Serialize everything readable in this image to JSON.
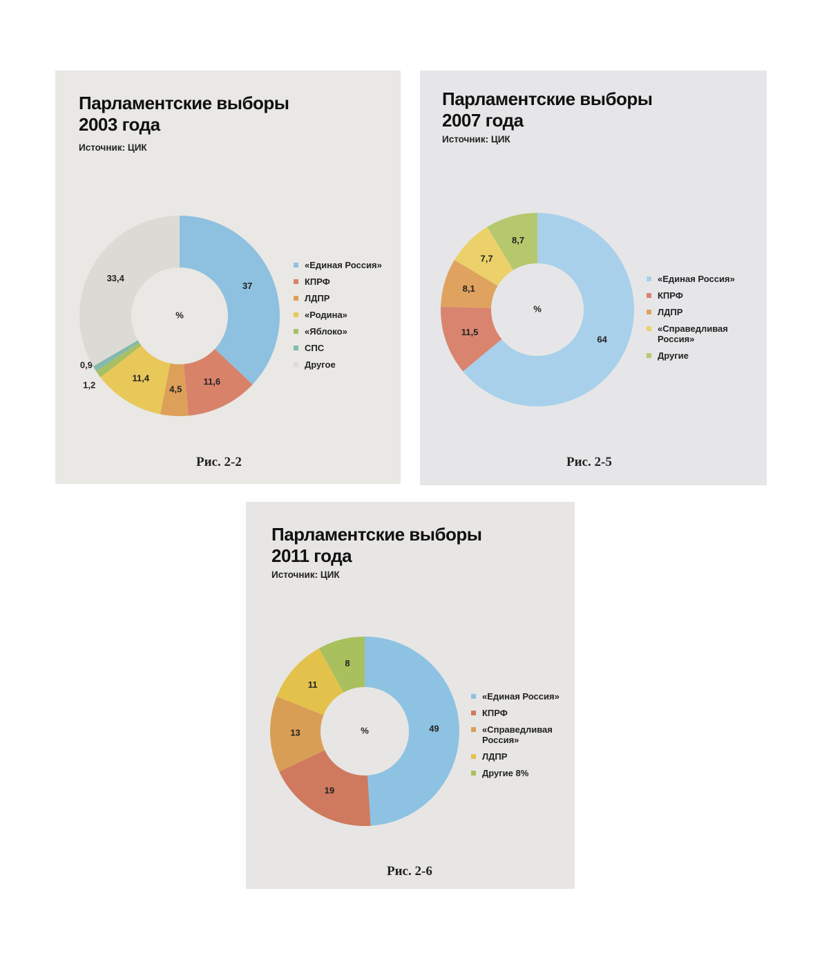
{
  "chart_data": [
    {
      "type": "pie",
      "title": "Парламентские выборы\n2003 года",
      "source": "Источник: ЦИК",
      "center_label": "%",
      "caption": "Рис. 2-2",
      "categories": [
        "«Единая Россия»",
        "КПРФ",
        "ЛДПР",
        "«Родина»",
        "«Яблоко»",
        "СПС",
        "Другое"
      ],
      "values": [
        37,
        11.6,
        4.5,
        11.4,
        1.2,
        0.9,
        33.4
      ],
      "value_labels": [
        "37",
        "11,6",
        "4,5",
        "11,4",
        "1,2",
        "0,9",
        "33,4"
      ],
      "colors": [
        "#8ec0e0",
        "#d9826a",
        "#dda059",
        "#e8c859",
        "#a7bf65",
        "#84b9ad",
        "#dcdad4"
      ],
      "legend": "right"
    },
    {
      "type": "pie",
      "title": "Парламентские выборы\n2007 года",
      "source": "Источник: ЦИК",
      "center_label": "%",
      "caption": "Рис. 2-5",
      "categories": [
        "«Единая Россия»",
        "КПРФ",
        "ЛДПР",
        "«Справедливая\nРоссия»",
        "Другие"
      ],
      "values": [
        64,
        11.5,
        8.1,
        7.7,
        8.7
      ],
      "value_labels": [
        "64",
        "11,5",
        "8,1",
        "7,7",
        "8,7"
      ],
      "colors": [
        "#a8d0ea",
        "#d9846f",
        "#dfa35f",
        "#ecd16b",
        "#b5c86e"
      ],
      "legend": "right"
    },
    {
      "type": "pie",
      "title": "Парламентские выборы\n2011 года",
      "source": "Источник: ЦИК",
      "center_label": "%",
      "caption": "Рис. 2-6",
      "categories": [
        "«Единая Россия»",
        "КПРФ",
        "«Справедливая\nРоссия»",
        "ЛДПР",
        "Другие 8%"
      ],
      "values": [
        49,
        19,
        13,
        11,
        8
      ],
      "value_labels": [
        "49",
        "19",
        "13",
        "11",
        "8"
      ],
      "colors": [
        "#8ec2e2",
        "#cf7a5e",
        "#d99e55",
        "#e3c24c",
        "#a9c05e"
      ],
      "legend": "right"
    }
  ]
}
